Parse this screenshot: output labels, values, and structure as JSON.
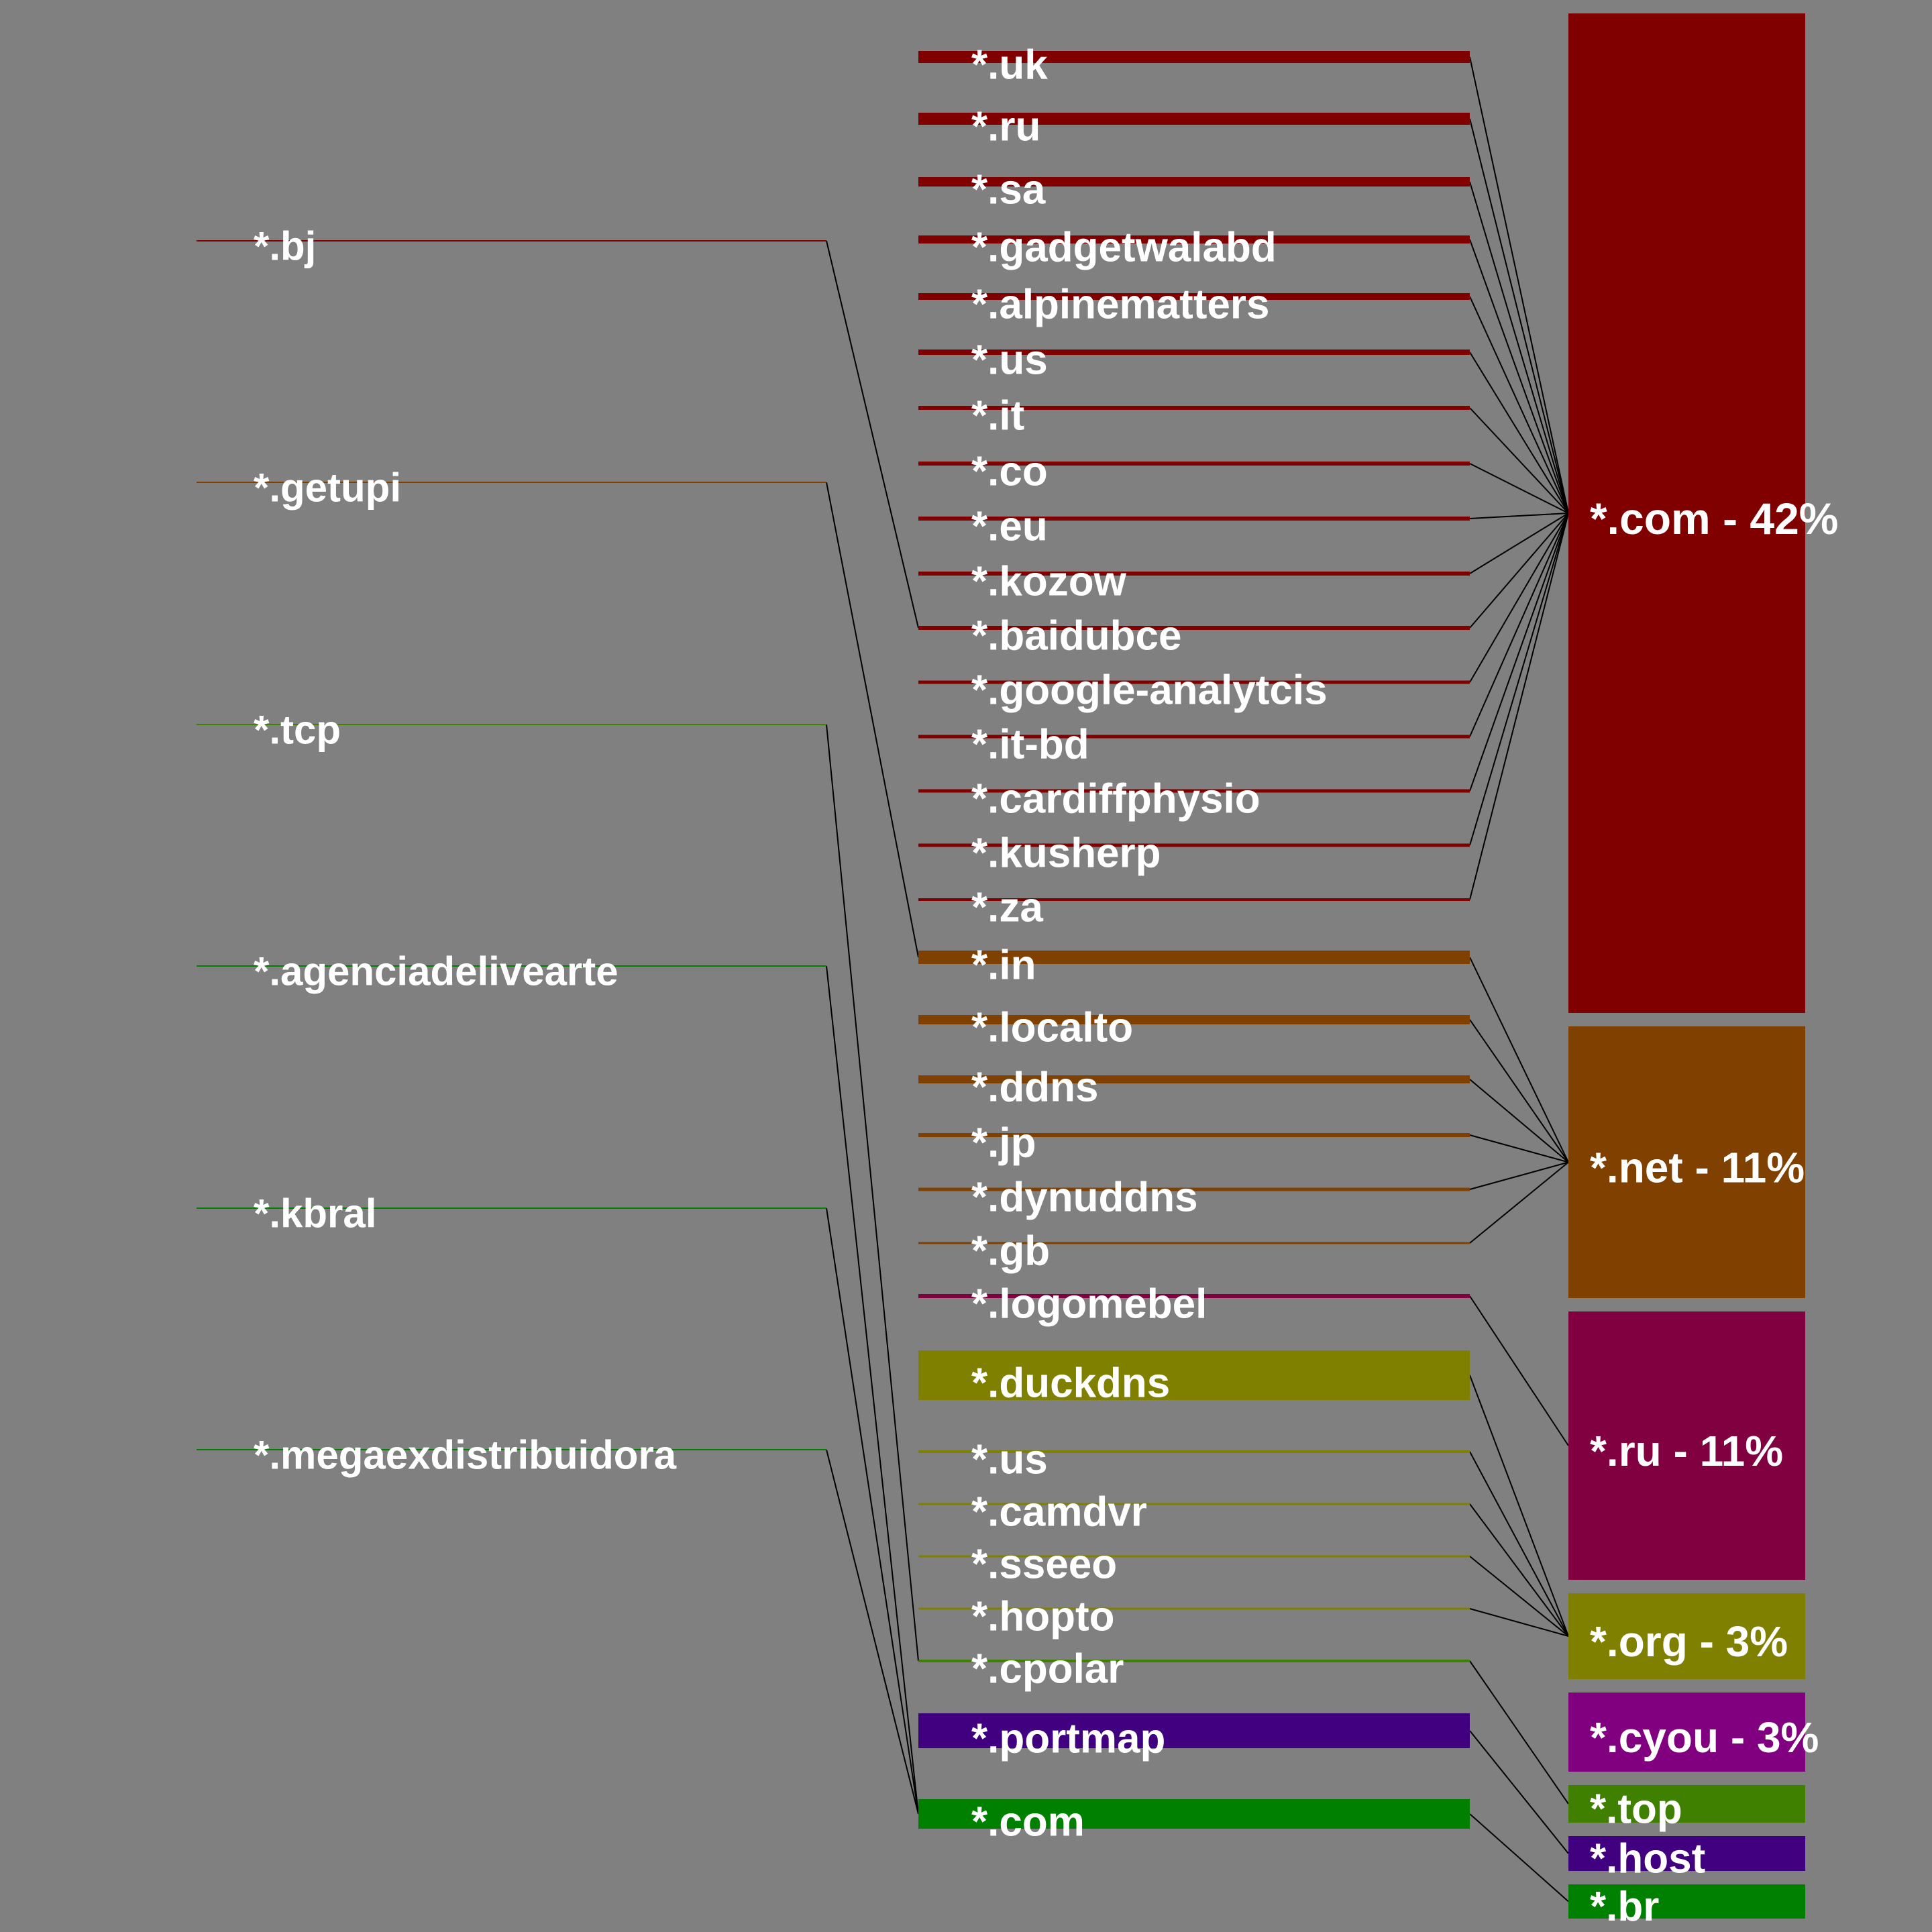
{
  "left_nodes": [
    {
      "label": "*.bj",
      "color": "#800000"
    },
    {
      "label": "*.getupi",
      "color": "#804000"
    },
    {
      "label": "*.tcp",
      "color": "#408000"
    },
    {
      "label": "*.agenciadelivearte",
      "color": "#008000"
    },
    {
      "label": "*.kbral",
      "color": "#008000"
    },
    {
      "label": "*.megaexdistribuidora",
      "color": "#008000"
    }
  ],
  "middle_nodes": [
    {
      "label": "*.uk",
      "color": "#800000",
      "thick": 18
    },
    {
      "label": "*.ru",
      "color": "#800000",
      "thick": 18
    },
    {
      "label": "*.sa",
      "color": "#800000",
      "thick": 14
    },
    {
      "label": "*.gadgetwalabd",
      "color": "#800000",
      "thick": 12
    },
    {
      "label": "*.alpinematters",
      "color": "#800000",
      "thick": 10
    },
    {
      "label": "*.us",
      "color": "#800000",
      "thick": 8
    },
    {
      "label": "*.it",
      "color": "#800000",
      "thick": 6
    },
    {
      "label": "*.co",
      "color": "#800000",
      "thick": 6
    },
    {
      "label": "*.eu",
      "color": "#800000",
      "thick": 6
    },
    {
      "label": "*.kozow",
      "color": "#800000",
      "thick": 6
    },
    {
      "label": "*.baidubce",
      "color": "#800000",
      "thick": 6
    },
    {
      "label": "*.google-analytcis",
      "color": "#800000",
      "thick": 5
    },
    {
      "label": "*.it-bd",
      "color": "#800000",
      "thick": 5
    },
    {
      "label": "*.cardiffphysio",
      "color": "#800000",
      "thick": 5
    },
    {
      "label": "*.kusherp",
      "color": "#800000",
      "thick": 5
    },
    {
      "label": "*.za",
      "color": "#800000",
      "thick": 4
    },
    {
      "label": "*.in",
      "color": "#804000",
      "thick": 20
    },
    {
      "label": "*.localto",
      "color": "#804000",
      "thick": 14
    },
    {
      "label": "*.ddns",
      "color": "#804000",
      "thick": 12
    },
    {
      "label": "*.jp",
      "color": "#804000",
      "thick": 6
    },
    {
      "label": "*.dynuddns",
      "color": "#804000",
      "thick": 5
    },
    {
      "label": "*.gb",
      "color": "#804000",
      "thick": 3
    },
    {
      "label": "*.logomebel",
      "color": "#800040",
      "thick": 6
    },
    {
      "label": "*.duckdns",
      "color": "#808000",
      "thick": 74
    },
    {
      "label": "*.us",
      "color": "#808000",
      "thick": 4
    },
    {
      "label": "*.camdvr",
      "color": "#808000",
      "thick": 3
    },
    {
      "label": "*.sseeo",
      "color": "#808000",
      "thick": 3
    },
    {
      "label": "*.hopto",
      "color": "#808000",
      "thick": 3
    },
    {
      "label": "*.cpolar",
      "color": "#408000",
      "thick": 4
    },
    {
      "label": "*.portmap",
      "color": "#400080",
      "thick": 52
    },
    {
      "label": "*.com",
      "color": "#008000",
      "thick": 44
    }
  ],
  "right_nodes": [
    {
      "label": "*.com - 42%",
      "color": "#800000"
    },
    {
      "label": "*.net - 11%",
      "color": "#804000"
    },
    {
      "label": "*.ru - 11%",
      "color": "#800040"
    },
    {
      "label": "*.org - 3%",
      "color": "#808000"
    },
    {
      "label": "*.cyou - 3%",
      "color": "#800080"
    },
    {
      "label": "*.top",
      "color": "#408000"
    },
    {
      "label": "*.host",
      "color": "#400080"
    },
    {
      "label": "*.br",
      "color": "#008000"
    }
  ],
  "left_links": [
    {
      "from": 0,
      "to": 10
    },
    {
      "from": 1,
      "to": 16
    },
    {
      "from": 2,
      "to": 28
    },
    {
      "from": 3,
      "to": 30
    },
    {
      "from": 4,
      "to": 30
    },
    {
      "from": 5,
      "to": 30
    }
  ],
  "right_links": [
    {
      "from": [
        0,
        15
      ],
      "to": 0
    },
    {
      "from": [
        16,
        21
      ],
      "to": 1
    },
    {
      "from": [
        22,
        22
      ],
      "to": 2
    },
    {
      "from": [
        23,
        27
      ],
      "to": 3
    },
    {
      "from": [
        28,
        28
      ],
      "to": 5
    },
    {
      "from": [
        29,
        29
      ],
      "to": 6
    },
    {
      "from": [
        30,
        30
      ],
      "to": 7
    }
  ],
  "colors": {
    "background": "#808080",
    "text": "#ffffff",
    "link": "#000000"
  }
}
